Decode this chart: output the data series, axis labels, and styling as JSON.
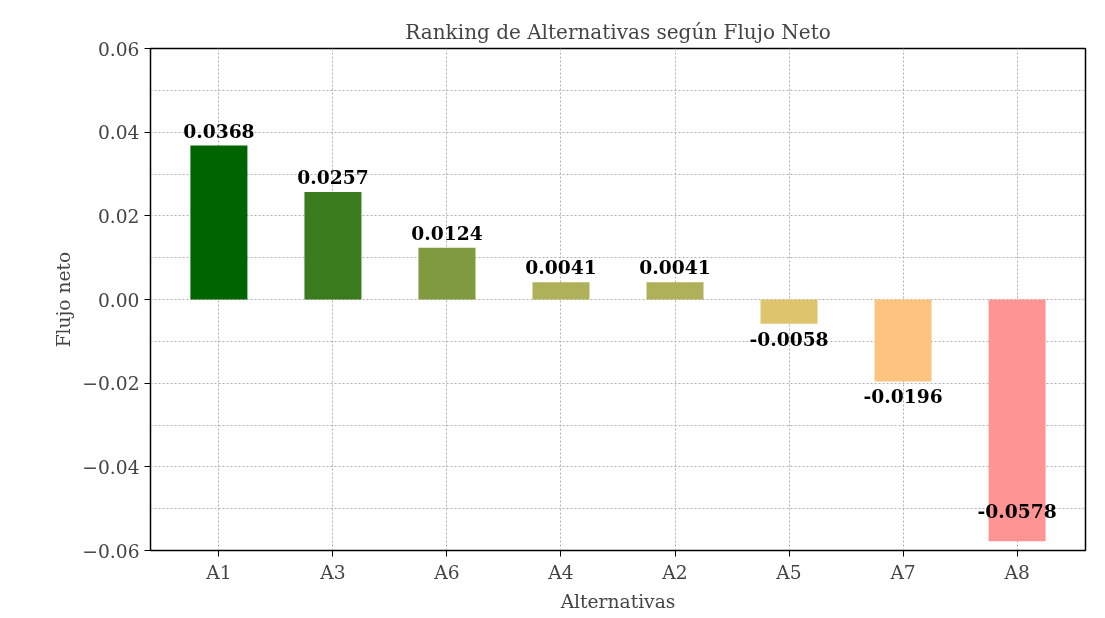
{
  "chart_data": {
    "type": "bar",
    "title": "Ranking de Alternativas según Flujo Neto",
    "xlabel": "Alternativas",
    "ylabel": "Flujo neto",
    "categories": [
      "A1",
      "A3",
      "A6",
      "A4",
      "A2",
      "A5",
      "A7",
      "A8"
    ],
    "values": [
      0.0368,
      0.0257,
      0.0124,
      0.0041,
      0.0041,
      -0.0058,
      -0.0196,
      -0.0578
    ],
    "colors": [
      "#006400",
      "#3a7b1e",
      "#7f9a3f",
      "#afb05a",
      "#afb05a",
      "#dfc46e",
      "#fdc47f",
      "#ff9494"
    ],
    "ylim": [
      -0.06,
      0.06
    ],
    "yticks": [
      {
        "value": -0.06,
        "label": "−0.06"
      },
      {
        "value": -0.04,
        "label": "−0.04"
      },
      {
        "value": -0.02,
        "label": "−0.02"
      },
      {
        "value": 0.0,
        "label": "0.00"
      },
      {
        "value": 0.02,
        "label": "0.02"
      },
      {
        "value": 0.04,
        "label": "0.04"
      },
      {
        "value": 0.06,
        "label": "0.06"
      }
    ],
    "grid": true,
    "data_labels": true
  }
}
